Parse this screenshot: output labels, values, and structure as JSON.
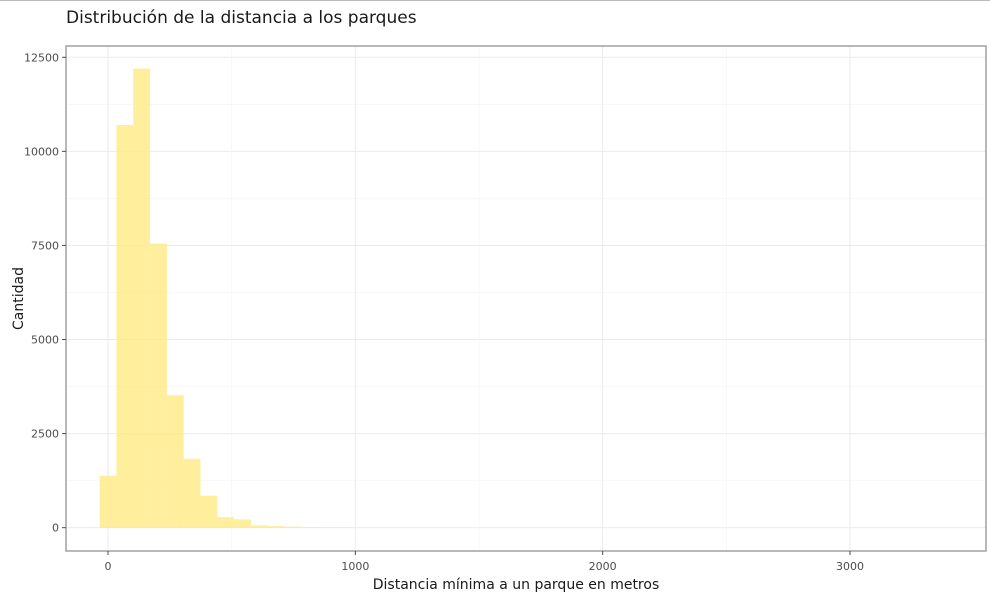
{
  "chart_data": {
    "type": "bar",
    "title": "Distribución de la distancia a los parques",
    "xlabel": "Distancia mínima a un parque en metros",
    "ylabel": "Cantidad",
    "x_ticks": [
      0,
      1000,
      2000,
      3000
    ],
    "y_ticks": [
      0,
      2500,
      5000,
      7500,
      10000,
      12500
    ],
    "xlim": [
      -170,
      3550
    ],
    "ylim": [
      -620,
      12800
    ],
    "bin_width": 68,
    "bins": [
      {
        "x0": -34,
        "x1": 34,
        "count": 1380
      },
      {
        "x0": 34,
        "x1": 102,
        "count": 10700
      },
      {
        "x0": 102,
        "x1": 170,
        "count": 12200
      },
      {
        "x0": 170,
        "x1": 238,
        "count": 7550
      },
      {
        "x0": 238,
        "x1": 306,
        "count": 3520
      },
      {
        "x0": 306,
        "x1": 374,
        "count": 1830
      },
      {
        "x0": 374,
        "x1": 442,
        "count": 850
      },
      {
        "x0": 442,
        "x1": 510,
        "count": 280
      },
      {
        "x0": 510,
        "x1": 578,
        "count": 220
      },
      {
        "x0": 578,
        "x1": 646,
        "count": 60
      },
      {
        "x0": 646,
        "x1": 714,
        "count": 40
      },
      {
        "x0": 714,
        "x1": 782,
        "count": 25
      },
      {
        "x0": 782,
        "x1": 850,
        "count": 15
      },
      {
        "x0": 850,
        "x1": 918,
        "count": 8
      },
      {
        "x0": 918,
        "x1": 986,
        "count": 5
      }
    ],
    "bar_color": "#ffe97f",
    "grid": true,
    "legend": "none"
  }
}
